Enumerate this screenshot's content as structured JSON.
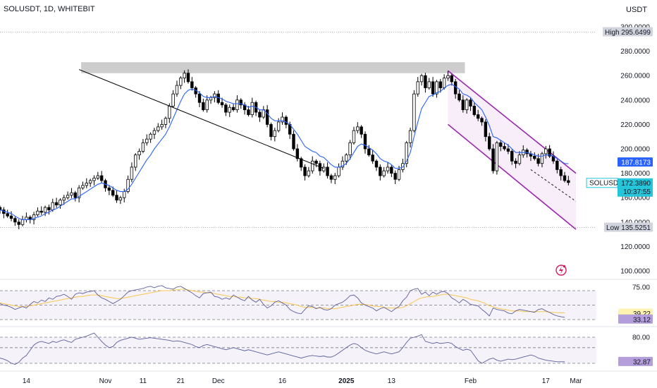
{
  "header": {
    "title": "SOLUSDT, 1D, WHITEBIT",
    "currency": "USDT"
  },
  "price_pane": {
    "yticks": [
      "300.0000",
      "280.0000",
      "260.0000",
      "240.0000",
      "220.0000",
      "200.0000",
      "180.0000",
      "160.0000",
      "140.0000",
      "120.0000",
      "100.0000"
    ],
    "high": {
      "label": "High",
      "value": "295.6499"
    },
    "low": {
      "label": "Low",
      "value": "135.5251"
    },
    "ma_tag": "187.8173",
    "last": {
      "symbol": "SOLUSDT",
      "price": "172.3890",
      "countdown": "10:37:55"
    }
  },
  "rsi_pane": {
    "yticks": [
      "75.00"
    ],
    "tag_signal": "39.22",
    "tag_rsi": "33.12"
  },
  "osc_pane": {
    "yticks": [
      "80.00"
    ],
    "tag": "32.87"
  },
  "time_axis": [
    "14",
    "Nov",
    "11",
    "21",
    "Dec",
    "16",
    "2025",
    "13",
    "Feb",
    "17",
    "Mar"
  ],
  "chart_data": [
    {
      "type": "candlestick",
      "title": "SOLUSDT, 1D, WHITEBIT",
      "ylabel": "USDT",
      "ylim": [
        95,
        305
      ],
      "log_scale": false,
      "grid": true,
      "high": 295.6499,
      "low": 135.5251,
      "last_price": 172.389,
      "moving_average_last": 187.8173,
      "colors": {
        "up": "#ffffff",
        "down": "#000000",
        "wick": "#000000",
        "ma": "#2962ff",
        "channel": "#9c27b0",
        "zone": "#c8c8c8"
      },
      "start_date": "2024-10-04",
      "close": [
        150,
        147,
        145,
        143,
        140,
        138,
        142,
        144,
        142,
        146,
        149,
        148,
        152,
        150,
        156,
        154,
        158,
        160,
        162,
        164,
        160,
        168,
        170,
        172,
        174,
        176,
        178,
        174,
        168,
        166,
        162,
        158,
        160,
        165,
        175,
        185,
        195,
        198,
        205,
        208,
        212,
        215,
        218,
        220,
        225,
        235,
        245,
        252,
        258,
        262,
        255,
        250,
        245,
        238,
        232,
        240,
        242,
        245,
        238,
        236,
        230,
        234,
        232,
        240,
        236,
        232,
        228,
        238,
        230,
        226,
        232,
        220,
        210,
        215,
        222,
        226,
        220,
        212,
        200,
        192,
        185,
        178,
        182,
        190,
        188,
        182,
        185,
        178,
        175,
        178,
        185,
        190,
        195,
        205,
        215,
        218,
        212,
        200,
        195,
        190,
        185,
        178,
        182,
        185,
        180,
        175,
        183,
        188,
        205,
        215,
        245,
        255,
        260,
        250,
        255,
        245,
        255,
        250,
        258,
        260,
        255,
        245,
        240,
        232,
        240,
        235,
        228,
        225,
        222,
        210,
        200,
        182,
        205,
        202,
        200,
        198,
        190,
        188,
        195,
        199,
        196,
        194,
        192,
        188,
        196,
        200,
        194,
        190,
        183,
        178,
        174,
        172.389
      ],
      "ma": [
        150,
        149,
        148,
        147,
        145,
        143,
        142,
        142,
        142,
        143,
        144,
        145,
        147,
        148,
        150,
        151,
        153,
        155,
        157,
        159,
        159,
        161,
        163,
        165,
        167,
        169,
        171,
        172,
        171,
        170,
        168,
        166,
        165,
        165,
        167,
        171,
        176,
        181,
        186,
        191,
        195,
        200,
        204,
        208,
        212,
        218,
        225,
        232,
        239,
        245,
        248,
        249,
        248,
        246,
        243,
        242,
        242,
        243,
        242,
        241,
        239,
        238,
        237,
        237,
        237,
        236,
        234,
        235,
        234,
        232,
        232,
        229,
        225,
        223,
        223,
        223,
        222,
        220,
        216,
        212,
        207,
        202,
        200,
        198,
        197,
        194,
        193,
        190,
        187,
        185,
        185,
        186,
        188,
        192,
        197,
        202,
        204,
        203,
        201,
        199,
        196,
        192,
        190,
        189,
        187,
        184,
        184,
        185,
        190,
        197,
        210,
        222,
        233,
        238,
        243,
        244,
        246,
        247,
        250,
        252,
        253,
        251,
        249,
        245,
        244,
        242,
        238,
        235,
        232,
        226,
        219,
        210,
        209,
        207,
        205,
        203,
        200,
        197,
        197,
        197,
        197,
        196,
        195,
        194,
        194,
        195,
        195,
        194,
        192,
        190,
        188,
        187.8173
      ],
      "resistance_zone": [
        262,
        271
      ],
      "descending_line": [
        [
          21,
          265
        ],
        [
          86,
          184
        ]
      ],
      "channel": {
        "upper": [
          [
            119,
            264
          ],
          [
            153,
            180
          ]
        ],
        "lower": [
          [
            119,
            220
          ],
          [
            153,
            134
          ]
        ],
        "mid_dashed": [
          [
            141,
            183
          ],
          [
            153,
            157
          ]
        ]
      }
    },
    {
      "type": "line",
      "title": "",
      "ylim": [
        28,
        80
      ],
      "bands": [
        70,
        50,
        30
      ],
      "series": [
        {
          "values": [
            52,
            50,
            49,
            47,
            44,
            46,
            48,
            46,
            51,
            55,
            53,
            57,
            55,
            60,
            58,
            62,
            63,
            65,
            62,
            58,
            65,
            67,
            66,
            68,
            69,
            70,
            64,
            60,
            58,
            55,
            52,
            55,
            58,
            63,
            68,
            70,
            71,
            72,
            73,
            75,
            76,
            74,
            76,
            77,
            74,
            73,
            72,
            75,
            76,
            73,
            70,
            67,
            63,
            60,
            66,
            67,
            68,
            62,
            61,
            58,
            60,
            58,
            64,
            61,
            58,
            56,
            62,
            57,
            54,
            58,
            51,
            46,
            49,
            54,
            56,
            53,
            50,
            44,
            41,
            39,
            38,
            44,
            49,
            48,
            45,
            47,
            44,
            43,
            45,
            50,
            52,
            54,
            58,
            63,
            64,
            60,
            53,
            50,
            48,
            46,
            42,
            45,
            47,
            44,
            41,
            45,
            48,
            56,
            61,
            70,
            72,
            73,
            65,
            68,
            63,
            68,
            65,
            68,
            69,
            66,
            60,
            57,
            53,
            58,
            55,
            51,
            50,
            49,
            44,
            40,
            35,
            46,
            44,
            43,
            42,
            39,
            38,
            42,
            44,
            43,
            42,
            41,
            40,
            44,
            45,
            42,
            40,
            37,
            35,
            34,
            33.12
          ]
        },
        {
          "values": [
            53,
            52,
            51,
            50,
            49,
            48,
            48,
            48,
            49,
            50,
            51,
            52,
            53,
            54,
            55,
            56,
            57,
            58,
            59,
            60,
            61,
            62,
            62,
            63,
            64,
            64,
            64,
            63,
            62,
            61,
            60,
            59,
            59,
            60,
            61,
            62,
            63,
            64,
            65,
            66,
            67,
            68,
            69,
            70,
            70,
            70,
            71,
            71,
            72,
            72,
            71,
            70,
            69,
            68,
            68,
            67,
            67,
            66,
            65,
            64,
            63,
            62,
            62,
            61,
            61,
            60,
            60,
            59,
            59,
            58,
            57,
            56,
            55,
            55,
            54,
            54,
            53,
            52,
            51,
            50,
            48,
            47,
            47,
            47,
            46,
            46,
            46,
            45,
            45,
            45,
            46,
            47,
            48,
            49,
            50,
            51,
            51,
            51,
            50,
            49,
            48,
            48,
            47,
            46,
            46,
            46,
            46,
            47,
            49,
            52,
            55,
            58,
            60,
            61,
            62,
            62,
            63,
            64,
            65,
            65,
            64,
            63,
            62,
            61,
            60,
            58,
            57,
            56,
            54,
            52,
            49,
            48,
            46,
            45,
            44,
            43,
            42,
            42,
            42,
            41,
            41,
            41,
            41,
            41,
            41,
            41,
            40,
            40,
            39.5,
            39.3,
            39.22
          ]
        }
      ]
    },
    {
      "type": "line",
      "title": "",
      "ylim": [
        25,
        95
      ],
      "bands": [
        80,
        60,
        30
      ],
      "series": [
        {
          "values": [
            40,
            38,
            35,
            30,
            28,
            32,
            40,
            45,
            55,
            65,
            70,
            72,
            70,
            68,
            72,
            70,
            73,
            75,
            72,
            70,
            76,
            78,
            80,
            82,
            85,
            88,
            80,
            72,
            65,
            60,
            62,
            70,
            74,
            76,
            78,
            80,
            78,
            76,
            77,
            78,
            79,
            78,
            77,
            76,
            75,
            74,
            72,
            73,
            72,
            70,
            68,
            66,
            62,
            60,
            64,
            66,
            64,
            62,
            60,
            58,
            56,
            58,
            60,
            58,
            56,
            54,
            56,
            54,
            52,
            50,
            48,
            46,
            48,
            50,
            52,
            50,
            48,
            46,
            44,
            42,
            40,
            42,
            44,
            45,
            44,
            43,
            44,
            42,
            42,
            45,
            50,
            55,
            60,
            65,
            68,
            66,
            60,
            55,
            52,
            50,
            48,
            50,
            52,
            50,
            48,
            50,
            52,
            60,
            70,
            78,
            80,
            82,
            85,
            72,
            70,
            68,
            70,
            68,
            69,
            70,
            68,
            62,
            58,
            55,
            57,
            55,
            45,
            35,
            30,
            34,
            38,
            40,
            36,
            34,
            36,
            38,
            37,
            38,
            40,
            42,
            44,
            46,
            44,
            40,
            38,
            36,
            35,
            34,
            33,
            33,
            32.87
          ]
        }
      ]
    }
  ]
}
